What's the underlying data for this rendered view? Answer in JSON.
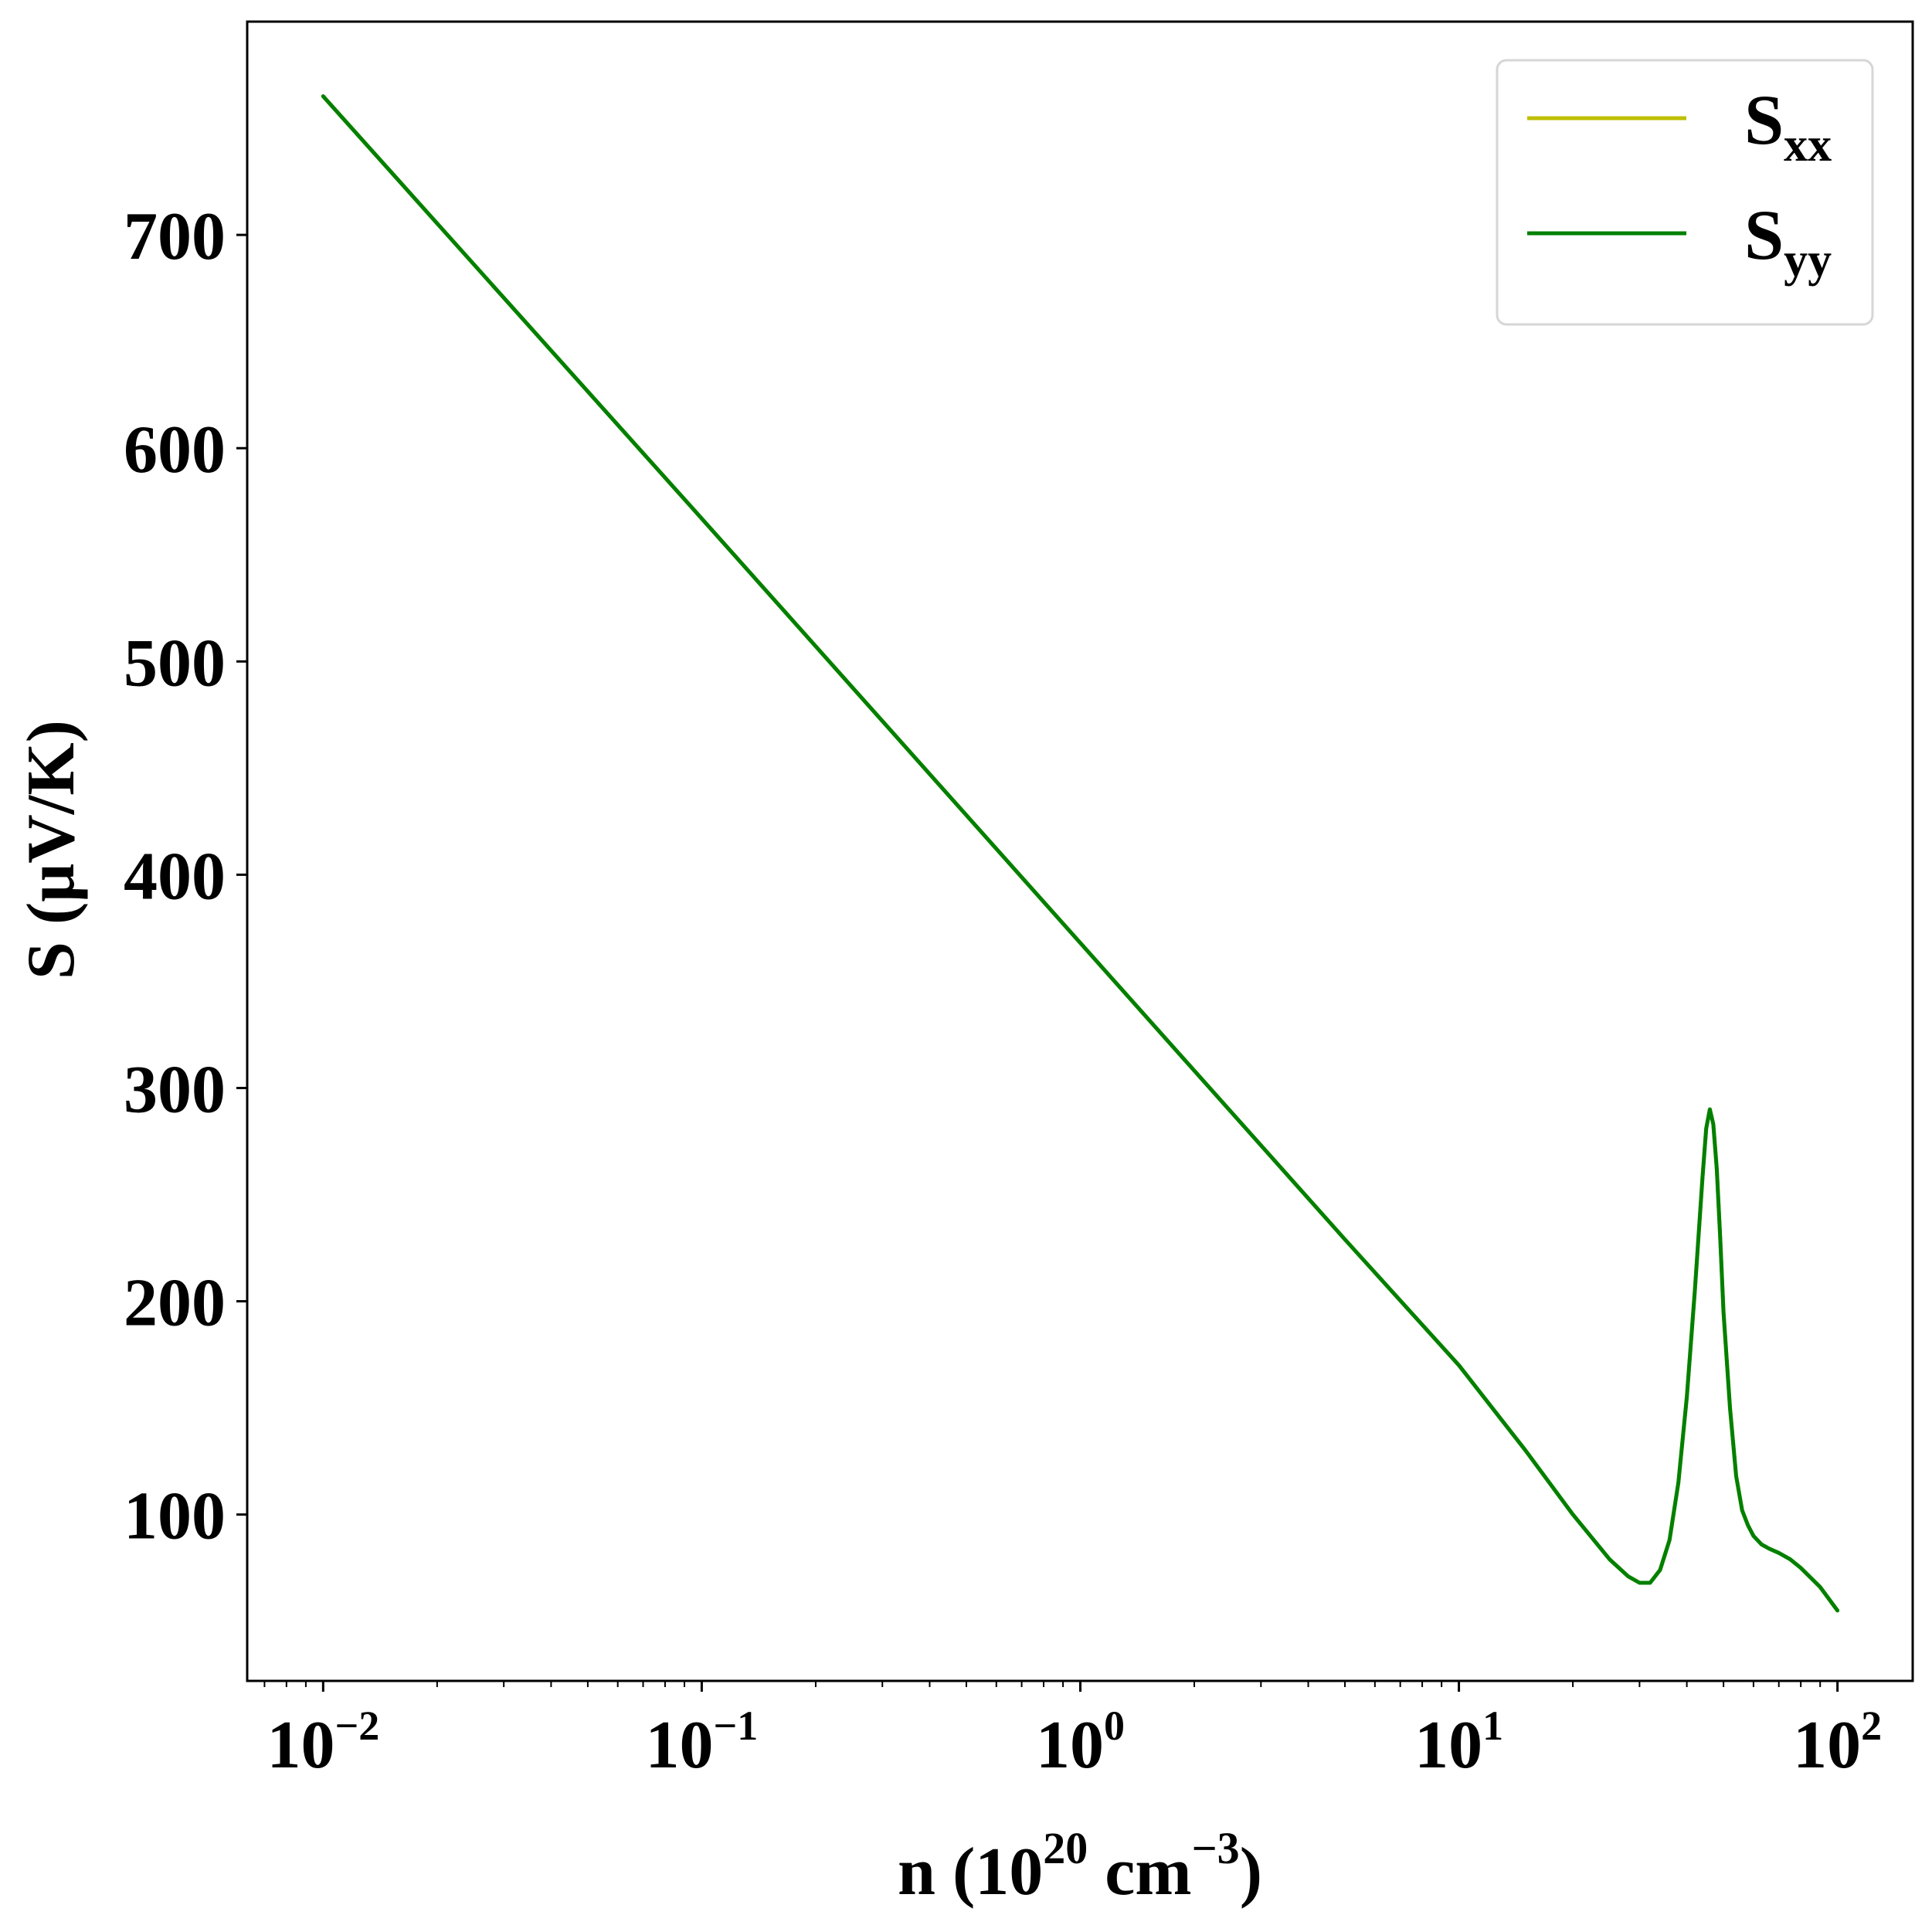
{
  "chart_data": {
    "type": "line",
    "xscale": "log",
    "xlim": [
      0.0063,
      158
    ],
    "ylim": [
      22,
      800
    ],
    "grid": false,
    "legend_position": "top-right",
    "xlabel": {
      "prefix": "n (10",
      "sup1": "20",
      "middle": " cm",
      "sup2": "−3",
      "suffix": ")"
    },
    "ylabel": "S (μV/K)",
    "x_ticks": [
      {
        "base": "10",
        "exp": "−2",
        "value": 0.01
      },
      {
        "base": "10",
        "exp": "−1",
        "value": 0.1
      },
      {
        "base": "10",
        "exp": "0",
        "value": 1
      },
      {
        "base": "10",
        "exp": "1",
        "value": 10
      },
      {
        "base": "10",
        "exp": "2",
        "value": 100
      }
    ],
    "y_ticks": [
      {
        "label": "100",
        "value": 100
      },
      {
        "label": "200",
        "value": 200
      },
      {
        "label": "300",
        "value": 300
      },
      {
        "label": "400",
        "value": 400
      },
      {
        "label": "500",
        "value": 500
      },
      {
        "label": "600",
        "value": 600
      },
      {
        "label": "700",
        "value": 700
      }
    ],
    "series": [
      {
        "name_main": "S",
        "name_sub": "xx",
        "color": "#bfbf00",
        "x": [
          0.01,
          0.1,
          1,
          5,
          10,
          15,
          20,
          25,
          28,
          30,
          32,
          34,
          36,
          38,
          40,
          42,
          44,
          45,
          46,
          47,
          48,
          49,
          50,
          52,
          54,
          56,
          58,
          60,
          63,
          66,
          70,
          75,
          80,
          90,
          100
        ],
        "y": [
          765,
          567,
          368,
          229,
          170,
          130,
          100,
          79,
          71,
          68,
          68,
          74,
          88,
          115,
          155,
          205,
          258,
          281,
          290,
          283,
          262,
          230,
          195,
          150,
          118,
          102,
          95,
          90,
          86,
          84,
          82,
          79,
          75,
          66,
          55
        ]
      },
      {
        "name_main": "S",
        "name_sub": "yy",
        "color": "#008000",
        "x": [
          0.01,
          0.1,
          1,
          5,
          10,
          15,
          20,
          25,
          28,
          30,
          32,
          34,
          36,
          38,
          40,
          42,
          44,
          45,
          46,
          47,
          48,
          49,
          50,
          52,
          54,
          56,
          58,
          60,
          63,
          66,
          70,
          75,
          80,
          90,
          100
        ],
        "y": [
          765,
          567,
          368,
          229,
          170,
          130,
          100,
          79,
          71,
          68,
          68,
          74,
          88,
          115,
          155,
          205,
          258,
          281,
          290,
          283,
          262,
          230,
          195,
          150,
          118,
          102,
          95,
          90,
          86,
          84,
          82,
          79,
          75,
          66,
          55
        ]
      }
    ]
  }
}
